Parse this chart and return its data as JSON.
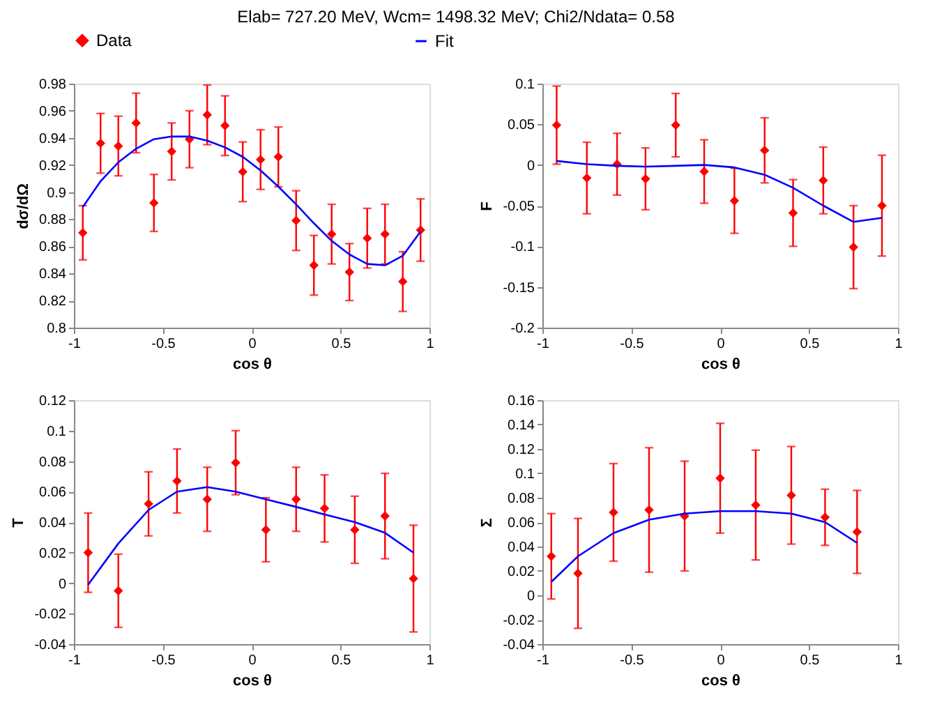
{
  "chart_data": [
    {
      "type": "scatter",
      "title": "Elab=  727.20 MeV, Wcm= 1498.32 MeV;  Chi2/Ndata= 0.58",
      "xlabel": "cos θ",
      "ylabel": "dσ/dΩ",
      "xlim": [
        -1,
        1
      ],
      "xticks": [
        -1,
        -0.5,
        0,
        0.5,
        1
      ],
      "ylim": [
        0.8,
        0.98
      ],
      "yticks": [
        0.8,
        0.82,
        0.84,
        0.86,
        0.88,
        0.9,
        0.92,
        0.94,
        0.96,
        0.98
      ],
      "grid": false,
      "legend": "top",
      "series": [
        {
          "name": "Data",
          "type": "scatter",
          "color": "#ff0000",
          "marker": "diamond",
          "x": [
            -0.95,
            -0.85,
            -0.75,
            -0.65,
            -0.55,
            -0.45,
            -0.35,
            -0.25,
            -0.15,
            -0.05,
            0.05,
            0.15,
            0.25,
            0.35,
            0.45,
            0.55,
            0.65,
            0.75,
            0.85,
            0.95
          ],
          "values": [
            0.87,
            0.936,
            0.934,
            0.951,
            0.892,
            0.93,
            0.939,
            0.957,
            0.949,
            0.915,
            0.924,
            0.926,
            0.879,
            0.846,
            0.869,
            0.841,
            0.866,
            0.869,
            0.834,
            0.872
          ],
          "errors": [
            0.02,
            0.022,
            0.022,
            0.022,
            0.021,
            0.021,
            0.021,
            0.022,
            0.022,
            0.022,
            0.022,
            0.022,
            0.022,
            0.022,
            0.022,
            0.021,
            0.022,
            0.022,
            0.022,
            0.023
          ]
        },
        {
          "name": "Fit",
          "type": "line",
          "color": "#0000ff",
          "line_style": "solid",
          "x": [
            -0.95,
            -0.85,
            -0.75,
            -0.65,
            -0.55,
            -0.45,
            -0.35,
            -0.25,
            -0.15,
            -0.05,
            0.05,
            0.15,
            0.25,
            0.35,
            0.45,
            0.55,
            0.65,
            0.75,
            0.85,
            0.95
          ],
          "values": [
            0.889,
            0.908,
            0.922,
            0.932,
            0.939,
            0.941,
            0.941,
            0.938,
            0.933,
            0.926,
            0.916,
            0.904,
            0.891,
            0.877,
            0.864,
            0.854,
            0.847,
            0.846,
            0.853,
            0.871
          ]
        }
      ]
    },
    {
      "type": "scatter",
      "xlabel": "cos θ",
      "ylabel": "F",
      "xlim": [
        -1,
        1
      ],
      "xticks": [
        -1,
        -0.5,
        0,
        0.5,
        1
      ],
      "ylim": [
        -0.2,
        0.1
      ],
      "yticks": [
        -0.2,
        -0.15,
        -0.1,
        -0.05,
        0,
        0.05,
        0.1
      ],
      "grid": false,
      "series": [
        {
          "type": "scatter",
          "color": "#ff0000",
          "marker": "diamond",
          "x": [
            -0.92,
            -0.75,
            -0.58,
            -0.42,
            -0.25,
            -0.09,
            0.08,
            0.25,
            0.41,
            0.58,
            0.75,
            0.91
          ],
          "values": [
            0.049,
            -0.016,
            0.001,
            -0.017,
            0.049,
            -0.008,
            -0.044,
            0.018,
            -0.059,
            -0.019,
            -0.101,
            -0.05
          ],
          "errors": [
            0.048,
            0.044,
            0.038,
            0.038,
            0.039,
            0.039,
            0.04,
            0.04,
            0.041,
            0.041,
            0.051,
            0.062
          ]
        },
        {
          "type": "line",
          "color": "#0000ff",
          "line_style": "solid",
          "x": [
            -0.92,
            -0.75,
            -0.58,
            -0.42,
            -0.25,
            -0.09,
            0.08,
            0.25,
            0.41,
            0.58,
            0.75,
            0.91
          ],
          "values": [
            0.005,
            0.001,
            -0.001,
            -0.002,
            -0.001,
            0.0,
            -0.003,
            -0.012,
            -0.028,
            -0.05,
            -0.07,
            -0.065
          ]
        }
      ]
    },
    {
      "type": "scatter",
      "xlabel": "cos θ",
      "ylabel": "T",
      "xlim": [
        -1,
        1
      ],
      "xticks": [
        -1,
        -0.5,
        0,
        0.5,
        1
      ],
      "ylim": [
        -0.04,
        0.12
      ],
      "yticks": [
        -0.04,
        -0.02,
        0,
        0.02,
        0.04,
        0.06,
        0.08,
        0.1,
        0.12
      ],
      "grid": false,
      "series": [
        {
          "type": "scatter",
          "color": "#ff0000",
          "marker": "diamond",
          "x": [
            -0.92,
            -0.75,
            -0.58,
            -0.42,
            -0.25,
            -0.09,
            0.08,
            0.25,
            0.41,
            0.58,
            0.75,
            0.91
          ],
          "values": [
            0.02,
            -0.005,
            0.052,
            0.067,
            0.055,
            0.079,
            0.035,
            0.055,
            0.049,
            0.035,
            0.044,
            0.003
          ],
          "errors": [
            0.026,
            0.024,
            0.021,
            0.021,
            0.021,
            0.021,
            0.021,
            0.021,
            0.022,
            0.022,
            0.028,
            0.035
          ]
        },
        {
          "type": "line",
          "color": "#0000ff",
          "line_style": "solid",
          "x": [
            -0.92,
            -0.75,
            -0.58,
            -0.42,
            -0.25,
            -0.09,
            0.08,
            0.25,
            0.41,
            0.58,
            0.75,
            0.91
          ],
          "values": [
            -0.001,
            0.026,
            0.048,
            0.06,
            0.063,
            0.06,
            0.055,
            0.05,
            0.045,
            0.04,
            0.033,
            0.02
          ]
        }
      ]
    },
    {
      "type": "scatter",
      "xlabel": "cos θ",
      "ylabel": "Σ",
      "xlim": [
        -1,
        1
      ],
      "xticks": [
        -1,
        -0.5,
        0,
        0.5,
        1
      ],
      "ylim": [
        -0.04,
        0.16
      ],
      "yticks": [
        -0.04,
        -0.02,
        0,
        0.02,
        0.04,
        0.06,
        0.08,
        0.1,
        0.12,
        0.14,
        0.16
      ],
      "grid": false,
      "series": [
        {
          "type": "scatter",
          "color": "#ff0000",
          "marker": "diamond",
          "x": [
            -0.95,
            -0.8,
            -0.6,
            -0.4,
            -0.2,
            0,
            0.2,
            0.4,
            0.59,
            0.77
          ],
          "values": [
            0.032,
            0.018,
            0.068,
            0.07,
            0.065,
            0.096,
            0.074,
            0.082,
            0.064,
            0.052
          ],
          "errors": [
            0.035,
            0.045,
            0.04,
            0.051,
            0.045,
            0.045,
            0.045,
            0.04,
            0.023,
            0.034
          ]
        },
        {
          "type": "line",
          "color": "#0000ff",
          "line_style": "solid",
          "x": [
            -0.95,
            -0.8,
            -0.6,
            -0.4,
            -0.2,
            0,
            0.2,
            0.4,
            0.59,
            0.77
          ],
          "values": [
            0.011,
            0.032,
            0.051,
            0.062,
            0.067,
            0.069,
            0.069,
            0.067,
            0.06,
            0.043
          ]
        }
      ]
    }
  ]
}
